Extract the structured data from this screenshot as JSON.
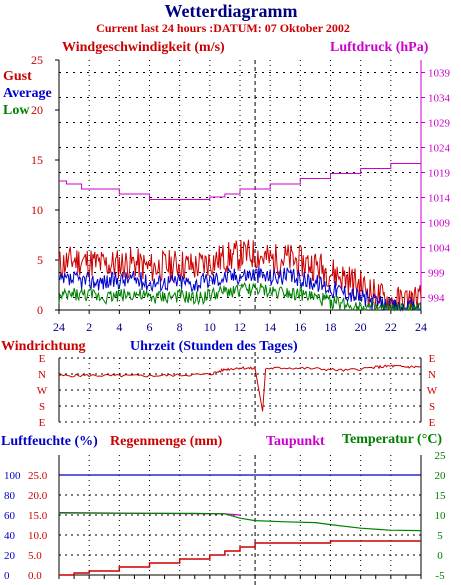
{
  "title": "Wetterdiagramm",
  "subtitle": "Current last 24 hours :DATUM: 07 Oktober 2002",
  "colors": {
    "navy": "#000080",
    "red": "#cc0000",
    "blue": "#0000cc",
    "green": "#008000",
    "magenta": "#cc00cc",
    "grid": "#000000",
    "axis": "#000000"
  },
  "chart_data": [
    {
      "type": "line",
      "name": "wind-pressure",
      "ylabel_left": "Windgeschwindigkeit (m/s)",
      "ylabel_right": "Luftdruck (hPa)",
      "legend": [
        "Gust",
        "Average",
        "Low"
      ],
      "xlabel": "Uhrzeit (Stunden des Tages)",
      "x_ticks": [
        "24",
        "2",
        "4",
        "6",
        "8",
        "10",
        "12",
        "14",
        "16",
        "18",
        "20",
        "22",
        "24"
      ],
      "y_ticks_left": [
        "0",
        "5",
        "10",
        "15",
        "20",
        "25"
      ],
      "y_ticks_right": [
        "994",
        "999",
        "1004",
        "1009",
        "1014",
        "1019",
        "1024",
        "1029",
        "1034",
        "1039"
      ],
      "ylim_left": [
        0,
        25
      ],
      "ylim_right": [
        991.5,
        1041.5
      ],
      "xlim": [
        0,
        24
      ],
      "series": [
        {
          "name": "Gust",
          "color": "#cc0000",
          "axis": "left",
          "points": [
            [
              0,
              4.5
            ],
            [
              1,
              5.0
            ],
            [
              2,
              4.8
            ],
            [
              3,
              4.5
            ],
            [
              4,
              4.6
            ],
            [
              5,
              4.7
            ],
            [
              6,
              4.2
            ],
            [
              7,
              4.4
            ],
            [
              8,
              4.6
            ],
            [
              9,
              4.3
            ],
            [
              10,
              4.8
            ],
            [
              11,
              5.2
            ],
            [
              12,
              5.5
            ],
            [
              13,
              5.6
            ],
            [
              14,
              5.0
            ],
            [
              15,
              5.2
            ],
            [
              16,
              4.8
            ],
            [
              17,
              4.5
            ],
            [
              18,
              3.8
            ],
            [
              19,
              3.2
            ],
            [
              20,
              2.5
            ],
            [
              21,
              1.5
            ],
            [
              22,
              0.8
            ],
            [
              23,
              0.9
            ],
            [
              24,
              1.1
            ]
          ]
        },
        {
          "name": "Average",
          "color": "#0000cc",
          "axis": "left",
          "points": [
            [
              0,
              2.8
            ],
            [
              1,
              3.0
            ],
            [
              2,
              2.9
            ],
            [
              3,
              2.8
            ],
            [
              4,
              3.0
            ],
            [
              5,
              3.1
            ],
            [
              6,
              2.7
            ],
            [
              7,
              2.8
            ],
            [
              8,
              2.9
            ],
            [
              9,
              2.6
            ],
            [
              10,
              3.0
            ],
            [
              11,
              3.3
            ],
            [
              12,
              3.5
            ],
            [
              13,
              3.6
            ],
            [
              14,
              3.3
            ],
            [
              15,
              3.4
            ],
            [
              16,
              3.1
            ],
            [
              17,
              2.8
            ],
            [
              18,
              2.2
            ],
            [
              19,
              1.8
            ],
            [
              20,
              1.3
            ],
            [
              21,
              0.7
            ],
            [
              22,
              0.3
            ],
            [
              23,
              0.2
            ],
            [
              24,
              0.3
            ]
          ]
        },
        {
          "name": "Low",
          "color": "#008000",
          "axis": "left",
          "points": [
            [
              0,
              1.2
            ],
            [
              1,
              1.6
            ],
            [
              2,
              1.5
            ],
            [
              3,
              1.3
            ],
            [
              4,
              1.5
            ],
            [
              5,
              1.6
            ],
            [
              6,
              1.2
            ],
            [
              7,
              1.3
            ],
            [
              8,
              1.4
            ],
            [
              9,
              1.1
            ],
            [
              10,
              1.5
            ],
            [
              11,
              1.8
            ],
            [
              12,
              2.0
            ],
            [
              13,
              2.1
            ],
            [
              14,
              1.8
            ],
            [
              15,
              1.9
            ],
            [
              16,
              1.6
            ],
            [
              17,
              1.2
            ],
            [
              18,
              0.8
            ],
            [
              19,
              0.6
            ],
            [
              20,
              0.3
            ],
            [
              21,
              0.1
            ],
            [
              22,
              0
            ],
            [
              23,
              0
            ],
            [
              24,
              0
            ]
          ]
        },
        {
          "name": "Luftdruck",
          "color": "#cc00cc",
          "axis": "right",
          "step": true,
          "points": [
            [
              0,
              1017.3
            ],
            [
              0.5,
              1016.7
            ],
            [
              1.5,
              1015.7
            ],
            [
              4,
              1014.7
            ],
            [
              6,
              1013.6
            ],
            [
              10,
              1014.1
            ],
            [
              11,
              1014.7
            ],
            [
              12,
              1015.7
            ],
            [
              14,
              1016.7
            ],
            [
              16,
              1017.8
            ],
            [
              18,
              1018.8
            ],
            [
              20,
              1019.8
            ],
            [
              22,
              1020.8
            ],
            [
              24,
              1020.8
            ]
          ]
        }
      ]
    },
    {
      "type": "line",
      "name": "wind-direction",
      "ylabel": "Windrichtung",
      "y_ticks": [
        "E",
        "N",
        "W",
        "S",
        "E"
      ],
      "y_values": [
        90,
        0,
        -90,
        -180,
        -270
      ],
      "ylim": [
        -270,
        90
      ],
      "xlim": [
        0,
        24
      ],
      "series": [
        {
          "name": "Windrichtung",
          "color": "#cc0000",
          "points": [
            [
              0,
              -10
            ],
            [
              2,
              -8
            ],
            [
              4,
              -10
            ],
            [
              6,
              -10
            ],
            [
              8,
              -6
            ],
            [
              10,
              -2
            ],
            [
              11,
              25
            ],
            [
              12,
              35
            ],
            [
              13,
              30
            ],
            [
              13.5,
              -210
            ],
            [
              13.7,
              30
            ],
            [
              15,
              35
            ],
            [
              17,
              30
            ],
            [
              19,
              20
            ],
            [
              21,
              38
            ],
            [
              22,
              45
            ],
            [
              23,
              40
            ],
            [
              24,
              40
            ]
          ]
        }
      ]
    },
    {
      "type": "line",
      "name": "humidity-rain-temperature",
      "ylabel_left_humidity": "Luftfeuchte (%)",
      "ylabel_left_rain": "Regenmenge (mm)",
      "ylabel_dewpoint": "Taupunkt",
      "ylabel_right": "Temperatur (°C)",
      "y_ticks_humidity": [
        "0",
        "20",
        "40",
        "60",
        "80",
        "100"
      ],
      "y_ticks_rain": [
        "0.0",
        "5.0",
        "10.0",
        "15.0",
        "20.0",
        "25.0"
      ],
      "y_ticks_temp": [
        "-5",
        "0",
        "5",
        "10",
        "15",
        "20",
        "25"
      ],
      "ylim_humidity": [
        0,
        120
      ],
      "ylim_rain": [
        0,
        30
      ],
      "ylim_temp": [
        -5,
        25
      ],
      "xlim": [
        0,
        24
      ],
      "series": [
        {
          "name": "Luftfeuchte",
          "color": "#0000cc",
          "axis": "humidity",
          "points": [
            [
              0,
              100
            ],
            [
              6,
              100
            ],
            [
              12,
              100
            ],
            [
              18,
              100
            ],
            [
              24,
              100
            ]
          ]
        },
        {
          "name": "Regenmenge",
          "color": "#cc0000",
          "axis": "rain",
          "step": true,
          "points": [
            [
              0,
              0
            ],
            [
              1,
              0.5
            ],
            [
              2,
              1
            ],
            [
              4,
              2
            ],
            [
              6,
              3
            ],
            [
              8,
              4
            ],
            [
              10,
              5
            ],
            [
              11,
              6
            ],
            [
              12,
              7
            ],
            [
              13,
              8
            ],
            [
              18,
              8.5
            ],
            [
              21,
              8.5
            ],
            [
              24,
              8.5
            ]
          ]
        },
        {
          "name": "Taupunkt",
          "color": "#cc00cc",
          "axis": "temp",
          "points": [
            [
              0,
              10.5
            ],
            [
              6,
              10.4
            ],
            [
              11,
              10.3
            ],
            [
              12,
              10.0
            ]
          ]
        },
        {
          "name": "Temperatur",
          "color": "#008000",
          "axis": "temp",
          "points": [
            [
              0,
              10.6
            ],
            [
              3,
              10.5
            ],
            [
              6,
              10.4
            ],
            [
              9,
              10.4
            ],
            [
              11,
              10.3
            ],
            [
              12,
              9.2
            ],
            [
              13,
              8.6
            ],
            [
              15,
              8.3
            ],
            [
              17,
              8.1
            ],
            [
              18,
              7.6
            ],
            [
              20,
              6.7
            ],
            [
              22,
              6.2
            ],
            [
              24,
              6.1
            ]
          ]
        }
      ]
    }
  ]
}
